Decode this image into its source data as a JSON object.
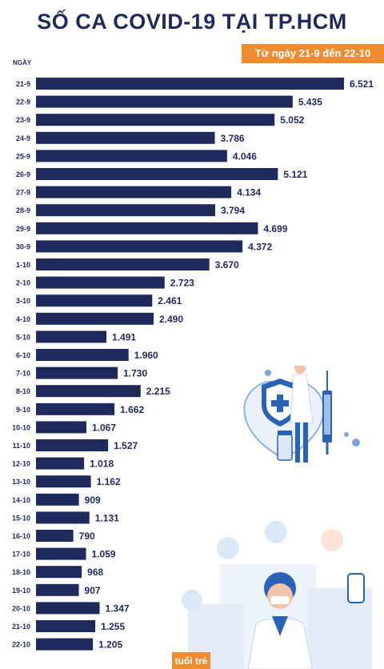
{
  "title": "SỐ CA COVID-19 TẠI TP.HCM",
  "subtitle": "Từ ngày 21-9 đến 22-10",
  "brand": "tuổi trẻ",
  "colors": {
    "bar": "#1f2a5c",
    "accent": "#f08c2e",
    "text": "#1f2a5c"
  },
  "chart_data": {
    "type": "bar",
    "orientation": "horizontal",
    "ylabel": "NGÀY",
    "categories": [
      "21-9",
      "22-9",
      "23-9",
      "24-9",
      "25-9",
      "26-9",
      "27-9",
      "28-9",
      "29-9",
      "30-9",
      "1-10",
      "2-10",
      "3-10",
      "4-10",
      "5-10",
      "6-10",
      "7-10",
      "8-10",
      "9-10",
      "10-10",
      "11-10",
      "12-10",
      "13-10",
      "14-10",
      "15-10",
      "16-10",
      "17-10",
      "18-10",
      "19-10",
      "20-10",
      "21-10",
      "22-10"
    ],
    "values": [
      6521,
      5435,
      5052,
      3786,
      4046,
      5121,
      4134,
      3794,
      4699,
      4372,
      3670,
      2723,
      2461,
      2490,
      1491,
      1960,
      1730,
      2215,
      1662,
      1067,
      1527,
      1018,
      1162,
      909,
      1131,
      790,
      1059,
      968,
      907,
      1347,
      1255,
      1205
    ],
    "value_labels": [
      "6.521",
      "5.435",
      "5.052",
      "3.786",
      "4.046",
      "5.121",
      "4.134",
      "3.794",
      "4.699",
      "4.372",
      "3.670",
      "2.723",
      "2.461",
      "2.490",
      "1.491",
      "1.960",
      "1.730",
      "2.215",
      "1.662",
      "1.067",
      "1.527",
      "1.018",
      "1.162",
      "909",
      "1.131",
      "790",
      "1.059",
      "968",
      "907",
      "1.347",
      "1.255",
      "1.205"
    ],
    "grid": false,
    "legend": "none"
  }
}
